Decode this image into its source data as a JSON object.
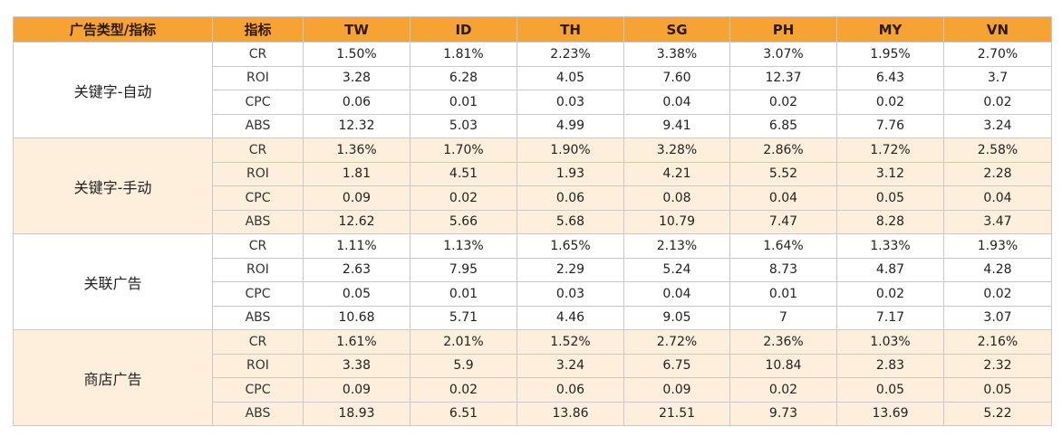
{
  "header": {
    "type_metric": "广告类型/指标",
    "metric": "指标",
    "countries": [
      "TW",
      "ID",
      "TH",
      "SG",
      "PH",
      "MY",
      "VN"
    ]
  },
  "groups": [
    {
      "name": "关键字-自动",
      "rows": [
        {
          "metric": "CR",
          "values": [
            "1.50%",
            "1.81%",
            "2.23%",
            "3.38%",
            "3.07%",
            "1.95%",
            "2.70%"
          ]
        },
        {
          "metric": "ROI",
          "values": [
            "3.28",
            "6.28",
            "4.05",
            "7.60",
            "12.37",
            "6.43",
            "3.7"
          ]
        },
        {
          "metric": "CPC",
          "values": [
            "0.06",
            "0.01",
            "0.03",
            "0.04",
            "0.02",
            "0.02",
            "0.02"
          ]
        },
        {
          "metric": "ABS",
          "values": [
            "12.32",
            "5.03",
            "4.99",
            "9.41",
            "6.85",
            "7.76",
            "3.24"
          ]
        }
      ]
    },
    {
      "name": "关键字-手动",
      "rows": [
        {
          "metric": "CR",
          "values": [
            "1.36%",
            "1.70%",
            "1.90%",
            "3.28%",
            "2.86%",
            "1.72%",
            "2.58%"
          ]
        },
        {
          "metric": "ROI",
          "values": [
            "1.81",
            "4.51",
            "1.93",
            "4.21",
            "5.52",
            "3.12",
            "2.28"
          ]
        },
        {
          "metric": "CPC",
          "values": [
            "0.09",
            "0.02",
            "0.06",
            "0.08",
            "0.04",
            "0.05",
            "0.04"
          ]
        },
        {
          "metric": "ABS",
          "values": [
            "12.62",
            "5.66",
            "5.68",
            "10.79",
            "7.47",
            "8.28",
            "3.47"
          ]
        }
      ]
    },
    {
      "name": "关联广告",
      "rows": [
        {
          "metric": "CR",
          "values": [
            "1.11%",
            "1.13%",
            "1.65%",
            "2.13%",
            "1.64%",
            "1.33%",
            "1.93%"
          ]
        },
        {
          "metric": "ROI",
          "values": [
            "2.63",
            "7.95",
            "2.29",
            "5.24",
            "8.73",
            "4.87",
            "4.28"
          ]
        },
        {
          "metric": "CPC",
          "values": [
            "0.05",
            "0.01",
            "0.03",
            "0.04",
            "0.01",
            "0.02",
            "0.02"
          ]
        },
        {
          "metric": "ABS",
          "values": [
            "10.68",
            "5.71",
            "4.46",
            "9.05",
            "7",
            "7.17",
            "3.07"
          ]
        }
      ]
    },
    {
      "name": "商店广告",
      "rows": [
        {
          "metric": "CR",
          "values": [
            "1.61%",
            "2.01%",
            "1.52%",
            "2.72%",
            "2.36%",
            "1.03%",
            "2.16%"
          ]
        },
        {
          "metric": "ROI",
          "values": [
            "3.38",
            "5.9",
            "3.24",
            "6.75",
            "10.84",
            "2.83",
            "2.32"
          ]
        },
        {
          "metric": "CPC",
          "values": [
            "0.09",
            "0.02",
            "0.06",
            "0.09",
            "0.02",
            "0.05",
            "0.05"
          ]
        },
        {
          "metric": "ABS",
          "values": [
            "18.93",
            "6.51",
            "13.86",
            "21.51",
            "9.73",
            "13.69",
            "5.22"
          ]
        }
      ]
    }
  ]
}
